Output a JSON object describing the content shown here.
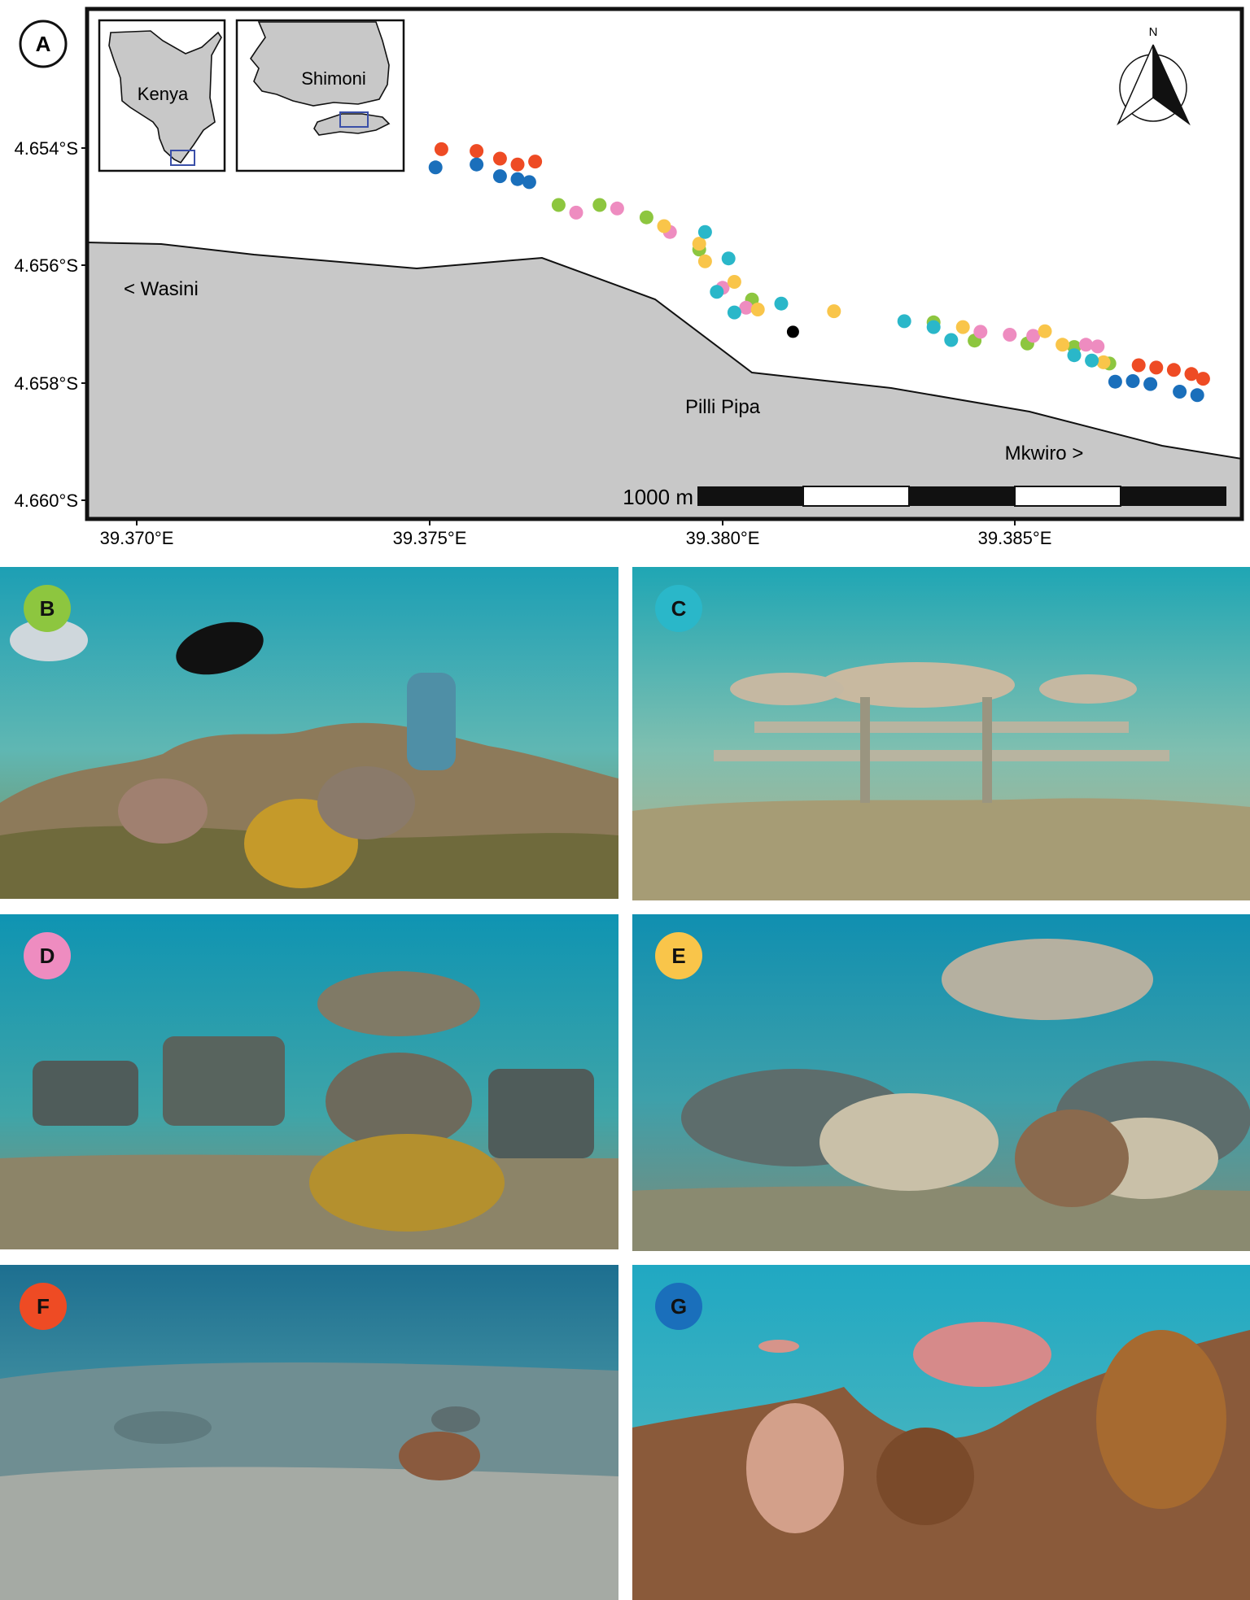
{
  "map": {
    "panel_label": "A",
    "inset_country": "Kenya",
    "inset_region": "Shimoni",
    "north_label": "N",
    "place_west": "< Wasini",
    "place_center": "Pilli Pipa",
    "place_east": "Mkwiro >",
    "scale_label": "1000 m",
    "x_ticks": [
      "39.370°E",
      "39.375°E",
      "39.380°E",
      "39.385°E"
    ],
    "y_ticks": [
      "4.654°S",
      "4.656°S",
      "4.658°S",
      "4.660°S"
    ],
    "colors": {
      "land": "#c8c8c8",
      "inset_box": "#3a4fa8",
      "B": "#8dc63f",
      "C": "#2ab7c9",
      "D": "#ee8cc0",
      "E": "#f9c54a",
      "F": "#ee4b24",
      "G": "#1a6fbb",
      "site": "#000000"
    }
  },
  "chart_data": {
    "type": "scatter",
    "x_range": [
      39.3686,
      39.3888
    ],
    "y_range_south": [
      4.6532,
      4.6602
    ],
    "x_ticks": [
      39.37,
      39.375,
      39.38,
      39.385
    ],
    "y_ticks_south": [
      4.654,
      4.656,
      4.658,
      4.66
    ],
    "coastline": [
      [
        39.3686,
        4.65584
      ],
      [
        39.3704,
        4.65588
      ],
      [
        39.3729,
        4.65608
      ],
      [
        39.3743,
        4.65605
      ],
      [
        39.3771,
        4.65643
      ],
      [
        39.3794,
        4.65759
      ],
      [
        39.3788,
        4.657
      ],
      [
        39.375,
        4.65582
      ],
      [
        39.3791,
        4.65743
      ]
    ],
    "series": [
      {
        "name": "F",
        "points": [
          [
            39.3752,
            4.65402
          ],
          [
            39.3758,
            4.65405
          ],
          [
            39.3762,
            4.65418
          ],
          [
            39.3765,
            4.65428
          ],
          [
            39.3768,
            4.65423
          ],
          [
            39.3871,
            4.6577
          ],
          [
            39.3874,
            4.65774
          ],
          [
            39.3877,
            4.65778
          ],
          [
            39.388,
            4.65785
          ],
          [
            39.3882,
            4.65793
          ]
        ]
      },
      {
        "name": "G",
        "points": [
          [
            39.3751,
            4.65433
          ],
          [
            39.3758,
            4.65428
          ],
          [
            39.3762,
            4.65448
          ],
          [
            39.3765,
            4.65453
          ],
          [
            39.3767,
            4.65458
          ],
          [
            39.3867,
            4.65798
          ],
          [
            39.387,
            4.65797
          ],
          [
            39.3873,
            4.65802
          ],
          [
            39.3878,
            4.65815
          ],
          [
            39.3881,
            4.65821
          ]
        ]
      },
      {
        "name": "B",
        "points": [
          [
            39.3772,
            4.65497
          ],
          [
            39.3779,
            4.65497
          ],
          [
            39.3787,
            4.65518
          ],
          [
            39.3796,
            4.65573
          ],
          [
            39.3805,
            4.65658
          ],
          [
            39.3836,
            4.65697
          ],
          [
            39.3843,
            4.65728
          ],
          [
            39.3852,
            4.65733
          ],
          [
            39.386,
            4.65739
          ],
          [
            39.3866,
            4.65767
          ]
        ]
      },
      {
        "name": "D",
        "points": [
          [
            39.3775,
            4.6551
          ],
          [
            39.3782,
            4.65503
          ],
          [
            39.3791,
            4.65543
          ],
          [
            39.38,
            4.65638
          ],
          [
            39.3804,
            4.65672
          ],
          [
            39.3844,
            4.65713
          ],
          [
            39.3849,
            4.65718
          ],
          [
            39.3853,
            4.6572
          ],
          [
            39.3862,
            4.65735
          ],
          [
            39.3864,
            4.65738
          ]
        ]
      },
      {
        "name": "E",
        "points": [
          [
            39.379,
            4.65533
          ],
          [
            39.3796,
            4.65563
          ],
          [
            39.3797,
            4.65593
          ],
          [
            39.3802,
            4.65628
          ],
          [
            39.3806,
            4.65675
          ],
          [
            39.3819,
            4.65678
          ],
          [
            39.3841,
            4.65705
          ],
          [
            39.3855,
            4.65712
          ],
          [
            39.3858,
            4.65735
          ],
          [
            39.3865,
            4.65765
          ]
        ]
      },
      {
        "name": "C",
        "points": [
          [
            39.3797,
            4.65543
          ],
          [
            39.3801,
            4.65588
          ],
          [
            39.3799,
            4.65645
          ],
          [
            39.3802,
            4.6568
          ],
          [
            39.381,
            4.65665
          ],
          [
            39.3831,
            4.65695
          ],
          [
            39.3836,
            4.65705
          ],
          [
            39.3839,
            4.65727
          ],
          [
            39.386,
            4.65753
          ],
          [
            39.3863,
            4.65762
          ]
        ]
      },
      {
        "name": "site",
        "points": [
          [
            39.3812,
            4.65713
          ]
        ]
      }
    ]
  },
  "photos": [
    {
      "label": "B",
      "color": "#8dc63f"
    },
    {
      "label": "C",
      "color": "#2ab7c9"
    },
    {
      "label": "D",
      "color": "#ee8cc0"
    },
    {
      "label": "E",
      "color": "#f9c54a"
    },
    {
      "label": "F",
      "color": "#ee4b24"
    },
    {
      "label": "G",
      "color": "#1a6fbb"
    }
  ]
}
